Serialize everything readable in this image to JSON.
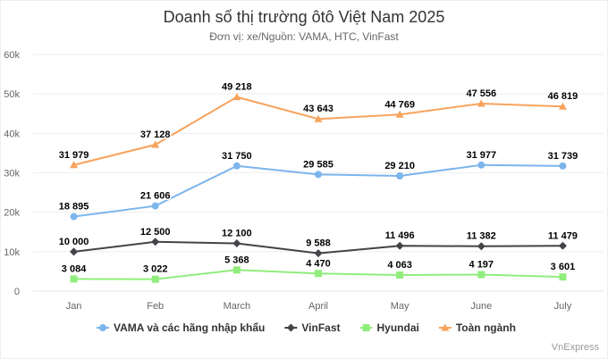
{
  "chart_data": {
    "type": "line",
    "title": "Doanh số thị trường ôtô Việt Nam 2025",
    "subtitle": "Đơn vị: xe/Nguồn: VAMA, HTC, VinFast",
    "categories": [
      "Jan",
      "Feb",
      "March",
      "April",
      "May",
      "June",
      "July"
    ],
    "ylim": [
      0,
      60000
    ],
    "yticks": [
      0,
      10000,
      20000,
      30000,
      40000,
      50000,
      60000
    ],
    "ytick_labels": [
      "0",
      "10k",
      "20k",
      "30k",
      "40k",
      "50k",
      "60k"
    ],
    "grid": true,
    "legend_position": "bottom-center",
    "series": [
      {
        "name": "VAMA và các hãng nhập khẩu",
        "color": "#7cb5ec",
        "marker": "circle",
        "values": [
          18895,
          21606,
          31750,
          29585,
          29210,
          31977,
          31739
        ],
        "labels": [
          "18 895",
          "21 606",
          "31 750",
          "29 585",
          "29 210",
          "31 977",
          "31 739"
        ]
      },
      {
        "name": "VinFast",
        "color": "#434348",
        "marker": "diamond",
        "values": [
          10000,
          12500,
          12100,
          9588,
          11496,
          11382,
          11479
        ],
        "labels": [
          "10 000",
          "12 500",
          "12 100",
          "9 588",
          "11 496",
          "11 382",
          "11 479"
        ]
      },
      {
        "name": "Hyundai",
        "color": "#90ed7d",
        "marker": "square",
        "values": [
          3084,
          3022,
          5368,
          4470,
          4063,
          4197,
          3601
        ],
        "labels": [
          "3 084",
          "3 022",
          "5 368",
          "4 470",
          "4 063",
          "4 197",
          "3 601"
        ]
      },
      {
        "name": "Toàn ngành",
        "color": "#f7a35c",
        "marker": "triangle",
        "values": [
          31979,
          37128,
          49218,
          43643,
          44769,
          47556,
          46819
        ],
        "labels": [
          "31 979",
          "37 128",
          "49 218",
          "43 643",
          "44 769",
          "47 556",
          "46 819"
        ]
      }
    ],
    "credit": "VnExpress"
  }
}
